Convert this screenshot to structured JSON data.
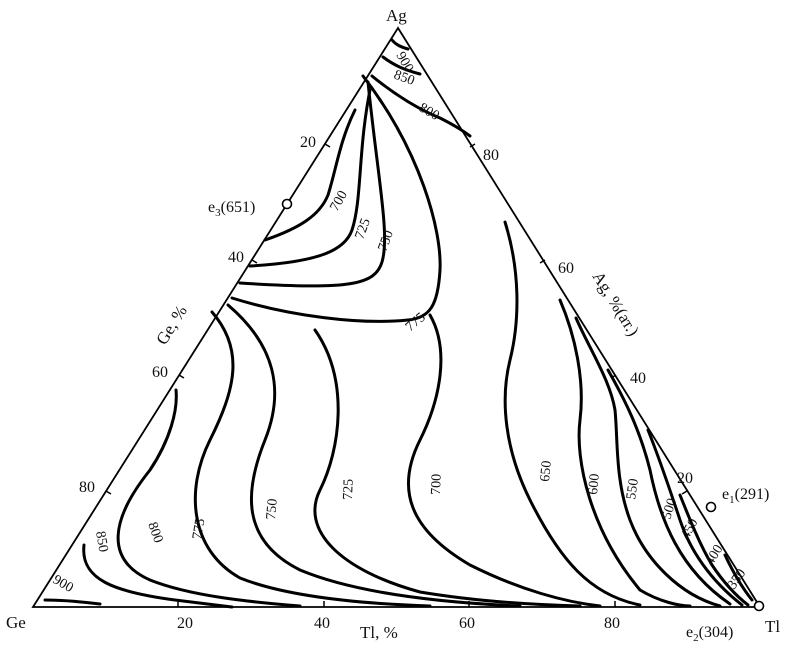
{
  "vertices": {
    "top": "Ag",
    "left": "Ge",
    "right": "Tl"
  },
  "axes": {
    "left": {
      "label": "Ge, %",
      "ticks": [
        "20",
        "40",
        "60",
        "80"
      ]
    },
    "right": {
      "label": "Ag, %(ат.)",
      "ticks": [
        "80",
        "60",
        "40",
        "20"
      ]
    },
    "bottom": {
      "label": "Tl, %",
      "ticks": [
        "20",
        "40",
        "60",
        "80"
      ]
    }
  },
  "eutectics": {
    "e1": {
      "name": "e",
      "sub": "1",
      "temp": "(291)"
    },
    "e2": {
      "name": "e",
      "sub": "2",
      "temp": "(304)"
    },
    "e3": {
      "name": "e",
      "sub": "3",
      "temp": "(651)"
    }
  },
  "isotherms": {
    "top": [
      "900",
      "850",
      "800",
      "700",
      "725",
      "750",
      "775"
    ],
    "middle": [
      "775",
      "750",
      "725",
      "700",
      "650",
      "600",
      "550",
      "500",
      "450",
      "400",
      "350"
    ],
    "left": [
      "850",
      "800",
      "900"
    ]
  },
  "colors": {
    "ink": "#000000",
    "background": "#ffffff"
  }
}
